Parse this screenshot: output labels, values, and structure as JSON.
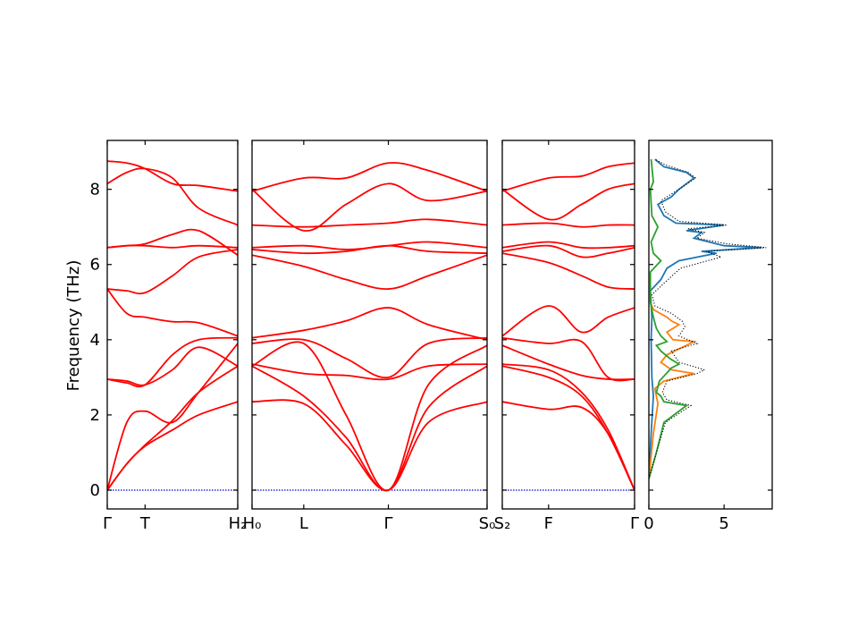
{
  "chart_data": {
    "type": "line",
    "ylabel": "Frequency (THz)",
    "ylim": [
      -0.5,
      9.3
    ],
    "yticks": [
      "0",
      "2",
      "4",
      "6",
      "8"
    ],
    "band_color": "#ff0000",
    "zero_line_color": "#0000cd",
    "segments": [
      {
        "xlabels": [
          "Γ",
          "T",
          "H₂"
        ],
        "tick_fracs": [
          0,
          0.29,
          1
        ],
        "bands": [
          {
            "x": [
              0,
              0.15,
              0.29,
              0.5,
              0.7,
              1
            ],
            "y": [
              0,
              0.7,
              1.17,
              1.6,
              2.0,
              2.35
            ]
          },
          {
            "x": [
              0,
              0.15,
              0.29,
              0.5,
              0.7,
              1
            ],
            "y": [
              0,
              0.7,
              1.2,
              1.85,
              2.6,
              3.3
            ]
          },
          {
            "x": [
              0,
              0.15,
              0.29,
              0.5,
              0.7,
              1
            ],
            "y": [
              0,
              1.8,
              2.1,
              1.8,
              2.6,
              3.9
            ]
          },
          {
            "x": [
              0,
              0.15,
              0.29,
              0.5,
              0.7,
              1
            ],
            "y": [
              2.95,
              2.9,
              2.8,
              3.2,
              3.8,
              3.3
            ]
          },
          {
            "x": [
              0,
              0.15,
              0.29,
              0.5,
              0.7,
              1
            ],
            "y": [
              2.95,
              2.85,
              2.8,
              3.6,
              4.0,
              4.05
            ]
          },
          {
            "x": [
              0,
              0.15,
              0.29,
              0.5,
              0.7,
              1
            ],
            "y": [
              5.35,
              4.7,
              4.6,
              4.48,
              4.45,
              4.1
            ]
          },
          {
            "x": [
              0,
              0.15,
              0.29,
              0.5,
              0.7,
              1
            ],
            "y": [
              5.35,
              5.3,
              5.25,
              5.7,
              6.2,
              6.4
            ]
          },
          {
            "x": [
              0,
              0.15,
              0.29,
              0.5,
              0.7,
              1
            ],
            "y": [
              6.45,
              6.5,
              6.55,
              6.8,
              6.9,
              6.25
            ]
          },
          {
            "x": [
              0,
              0.15,
              0.29,
              0.5,
              0.7,
              1
            ],
            "y": [
              6.45,
              6.5,
              6.5,
              6.45,
              6.5,
              6.45
            ]
          },
          {
            "x": [
              0,
              0.15,
              0.29,
              0.5,
              0.7,
              1
            ],
            "y": [
              8.15,
              8.45,
              8.55,
              8.3,
              7.5,
              7.05
            ]
          },
          {
            "x": [
              0,
              0.15,
              0.29,
              0.5,
              0.7,
              1
            ],
            "y": [
              8.75,
              8.7,
              8.55,
              8.15,
              8.1,
              7.95
            ]
          }
        ]
      },
      {
        "xlabels": [
          "H₀",
          "L",
          "Γ",
          "S₀"
        ],
        "tick_fracs": [
          0,
          0.22,
          0.58,
          1
        ],
        "bands": [
          {
            "x": [
              0,
              0.22,
              0.4,
              0.58,
              0.75,
              1
            ],
            "y": [
              2.35,
              2.3,
              1.2,
              0,
              1.8,
              2.35
            ]
          },
          {
            "x": [
              0,
              0.22,
              0.4,
              0.58,
              0.75,
              1
            ],
            "y": [
              3.3,
              2.5,
              1.4,
              0,
              2.2,
              3.3
            ]
          },
          {
            "x": [
              0,
              0.22,
              0.4,
              0.58,
              0.75,
              1
            ],
            "y": [
              3.3,
              3.9,
              2.0,
              0,
              2.8,
              3.85
            ]
          },
          {
            "x": [
              0,
              0.22,
              0.4,
              0.58,
              0.75,
              1
            ],
            "y": [
              3.35,
              3.1,
              3.05,
              2.95,
              3.3,
              3.35
            ]
          },
          {
            "x": [
              0,
              0.22,
              0.4,
              0.58,
              0.75,
              1
            ],
            "y": [
              3.9,
              4.0,
              3.5,
              3.0,
              3.9,
              4.05
            ]
          },
          {
            "x": [
              0,
              0.22,
              0.4,
              0.58,
              0.75,
              1
            ],
            "y": [
              4.05,
              4.25,
              4.5,
              4.85,
              4.4,
              4.0
            ]
          },
          {
            "x": [
              0,
              0.22,
              0.4,
              0.58,
              0.75,
              1
            ],
            "y": [
              6.25,
              5.95,
              5.6,
              5.35,
              5.7,
              6.25
            ]
          },
          {
            "x": [
              0,
              0.22,
              0.4,
              0.58,
              0.75,
              1
            ],
            "y": [
              6.4,
              6.3,
              6.35,
              6.5,
              6.35,
              6.3
            ]
          },
          {
            "x": [
              0,
              0.22,
              0.4,
              0.58,
              0.75,
              1
            ],
            "y": [
              6.45,
              6.5,
              6.4,
              6.5,
              6.6,
              6.45
            ]
          },
          {
            "x": [
              0,
              0.22,
              0.4,
              0.58,
              0.75,
              1
            ],
            "y": [
              7.05,
              7.0,
              7.05,
              7.1,
              7.2,
              7.05
            ]
          },
          {
            "x": [
              0,
              0.22,
              0.4,
              0.58,
              0.75,
              1
            ],
            "y": [
              7.95,
              8.3,
              8.3,
              8.7,
              8.5,
              7.95
            ]
          },
          {
            "x": [
              0,
              0.22,
              0.4,
              0.58,
              0.75,
              1
            ],
            "y": [
              8.0,
              6.9,
              7.6,
              8.15,
              7.7,
              7.95
            ]
          }
        ]
      },
      {
        "xlabels": [
          "S₂",
          "F",
          "Γ"
        ],
        "tick_fracs": [
          0,
          0.35,
          1
        ],
        "bands": [
          {
            "x": [
              0,
              0.35,
              0.6,
              0.8,
              1
            ],
            "y": [
              2.35,
              2.15,
              2.2,
              1.5,
              0
            ]
          },
          {
            "x": [
              0,
              0.35,
              0.6,
              0.8,
              1
            ],
            "y": [
              3.3,
              3.0,
              2.5,
              1.5,
              0
            ]
          },
          {
            "x": [
              0,
              0.35,
              0.6,
              0.8,
              1
            ],
            "y": [
              3.35,
              3.2,
              2.6,
              1.6,
              0
            ]
          },
          {
            "x": [
              0,
              0.35,
              0.6,
              0.8,
              1
            ],
            "y": [
              3.85,
              3.35,
              3.05,
              2.95,
              2.95
            ]
          },
          {
            "x": [
              0,
              0.35,
              0.6,
              0.8,
              1
            ],
            "y": [
              4.05,
              3.9,
              3.95,
              3.0,
              2.95
            ]
          },
          {
            "x": [
              0,
              0.35,
              0.6,
              0.8,
              1
            ],
            "y": [
              4.1,
              4.9,
              4.2,
              4.6,
              4.85
            ]
          },
          {
            "x": [
              0,
              0.35,
              0.6,
              0.8,
              1
            ],
            "y": [
              6.3,
              6.05,
              5.7,
              5.4,
              5.35
            ]
          },
          {
            "x": [
              0,
              0.35,
              0.6,
              0.8,
              1
            ],
            "y": [
              6.35,
              6.5,
              6.2,
              6.3,
              6.45
            ]
          },
          {
            "x": [
              0,
              0.35,
              0.6,
              0.8,
              1
            ],
            "y": [
              6.45,
              6.6,
              6.45,
              6.45,
              6.5
            ]
          },
          {
            "x": [
              0,
              0.35,
              0.6,
              0.8,
              1
            ],
            "y": [
              7.05,
              7.1,
              7.0,
              7.05,
              7.05
            ]
          },
          {
            "x": [
              0,
              0.35,
              0.6,
              0.8,
              1
            ],
            "y": [
              7.95,
              8.3,
              8.35,
              8.6,
              8.7
            ]
          },
          {
            "x": [
              0,
              0.35,
              0.6,
              0.8,
              1
            ],
            "y": [
              8.0,
              7.2,
              7.6,
              8.0,
              8.15
            ]
          }
        ]
      }
    ],
    "dos": {
      "xlim": [
        0,
        8.2
      ],
      "xticks": [
        "0",
        "5"
      ],
      "series": [
        {
          "color": "#1f77b4",
          "points": [
            [
              0,
              0.3
            ],
            [
              0.15,
              1.5
            ],
            [
              0.3,
              2.5
            ],
            [
              0.2,
              3.0
            ],
            [
              0.15,
              4.0
            ],
            [
              0.2,
              4.6
            ],
            [
              0.1,
              5.3
            ],
            [
              0.8,
              5.6
            ],
            [
              1.2,
              5.9
            ],
            [
              2.0,
              6.1
            ],
            [
              4.5,
              6.3
            ],
            [
              3.5,
              6.35
            ],
            [
              7.5,
              6.45
            ],
            [
              5.0,
              6.5
            ],
            [
              3.0,
              6.7
            ],
            [
              3.5,
              6.85
            ],
            [
              2.5,
              6.9
            ],
            [
              5.0,
              7.05
            ],
            [
              1.8,
              7.1
            ],
            [
              1.0,
              7.3
            ],
            [
              0.6,
              7.6
            ],
            [
              1.5,
              7.8
            ],
            [
              2.0,
              8.0
            ],
            [
              3.0,
              8.3
            ],
            [
              2.5,
              8.45
            ],
            [
              1.0,
              8.6
            ],
            [
              0.4,
              8.8
            ]
          ]
        },
        {
          "color": "#ff7f0e",
          "points": [
            [
              0,
              0.3
            ],
            [
              0.3,
              1.5
            ],
            [
              0.6,
              2.3
            ],
            [
              0.4,
              2.7
            ],
            [
              1.0,
              2.9
            ],
            [
              3.0,
              3.1
            ],
            [
              1.5,
              3.2
            ],
            [
              0.8,
              3.4
            ],
            [
              1.2,
              3.6
            ],
            [
              2.5,
              3.85
            ],
            [
              3.0,
              3.95
            ],
            [
              1.6,
              4.0
            ],
            [
              1.2,
              4.2
            ],
            [
              2.0,
              4.4
            ],
            [
              1.5,
              4.5
            ],
            [
              1.2,
              4.6
            ],
            [
              0.3,
              4.8
            ],
            [
              0.1,
              5.0
            ]
          ]
        },
        {
          "color": "#2ca02c",
          "points": [
            [
              0,
              0.3
            ],
            [
              0.5,
              1.0
            ],
            [
              1.0,
              1.8
            ],
            [
              2.5,
              2.25
            ],
            [
              1.0,
              2.35
            ],
            [
              0.8,
              2.5
            ],
            [
              0.5,
              2.6
            ],
            [
              0.7,
              2.9
            ],
            [
              1.5,
              3.25
            ],
            [
              2.0,
              3.35
            ],
            [
              1.4,
              3.5
            ],
            [
              0.8,
              3.7
            ],
            [
              0.5,
              3.85
            ],
            [
              1.2,
              3.95
            ],
            [
              0.8,
              4.1
            ],
            [
              0.5,
              4.3
            ],
            [
              0.3,
              4.6
            ],
            [
              0.1,
              5.0
            ],
            [
              0.1,
              5.8
            ],
            [
              0.8,
              6.1
            ],
            [
              0.3,
              6.3
            ],
            [
              0.15,
              6.6
            ],
            [
              0.6,
              7.0
            ],
            [
              0.2,
              7.3
            ],
            [
              0.1,
              8.0
            ],
            [
              0.3,
              8.2
            ],
            [
              0.15,
              8.8
            ]
          ]
        },
        {
          "color": "#000000",
          "dashed": true,
          "points": [
            [
              0,
              0.3
            ],
            [
              0.5,
              1.0
            ],
            [
              1.1,
              1.8
            ],
            [
              2.8,
              2.25
            ],
            [
              1.2,
              2.4
            ],
            [
              0.9,
              2.6
            ],
            [
              1.2,
              2.9
            ],
            [
              3.2,
              3.1
            ],
            [
              3.7,
              3.2
            ],
            [
              2.0,
              3.4
            ],
            [
              1.5,
              3.7
            ],
            [
              3.2,
              3.9
            ],
            [
              2.0,
              4.1
            ],
            [
              2.4,
              4.35
            ],
            [
              2.2,
              4.5
            ],
            [
              1.5,
              4.7
            ],
            [
              0.4,
              4.9
            ],
            [
              0.2,
              5.2
            ],
            [
              1.0,
              5.5
            ],
            [
              2.1,
              5.9
            ],
            [
              4.8,
              6.2
            ],
            [
              3.8,
              6.35
            ],
            [
              7.8,
              6.45
            ],
            [
              5.2,
              6.55
            ],
            [
              3.2,
              6.7
            ],
            [
              3.7,
              6.85
            ],
            [
              2.6,
              6.95
            ],
            [
              5.2,
              7.05
            ],
            [
              2.0,
              7.15
            ],
            [
              1.1,
              7.4
            ],
            [
              0.8,
              7.7
            ],
            [
              1.6,
              7.9
            ],
            [
              2.2,
              8.05
            ],
            [
              3.1,
              8.3
            ],
            [
              2.6,
              8.45
            ],
            [
              1.1,
              8.65
            ],
            [
              0.4,
              8.8
            ]
          ]
        }
      ]
    }
  }
}
